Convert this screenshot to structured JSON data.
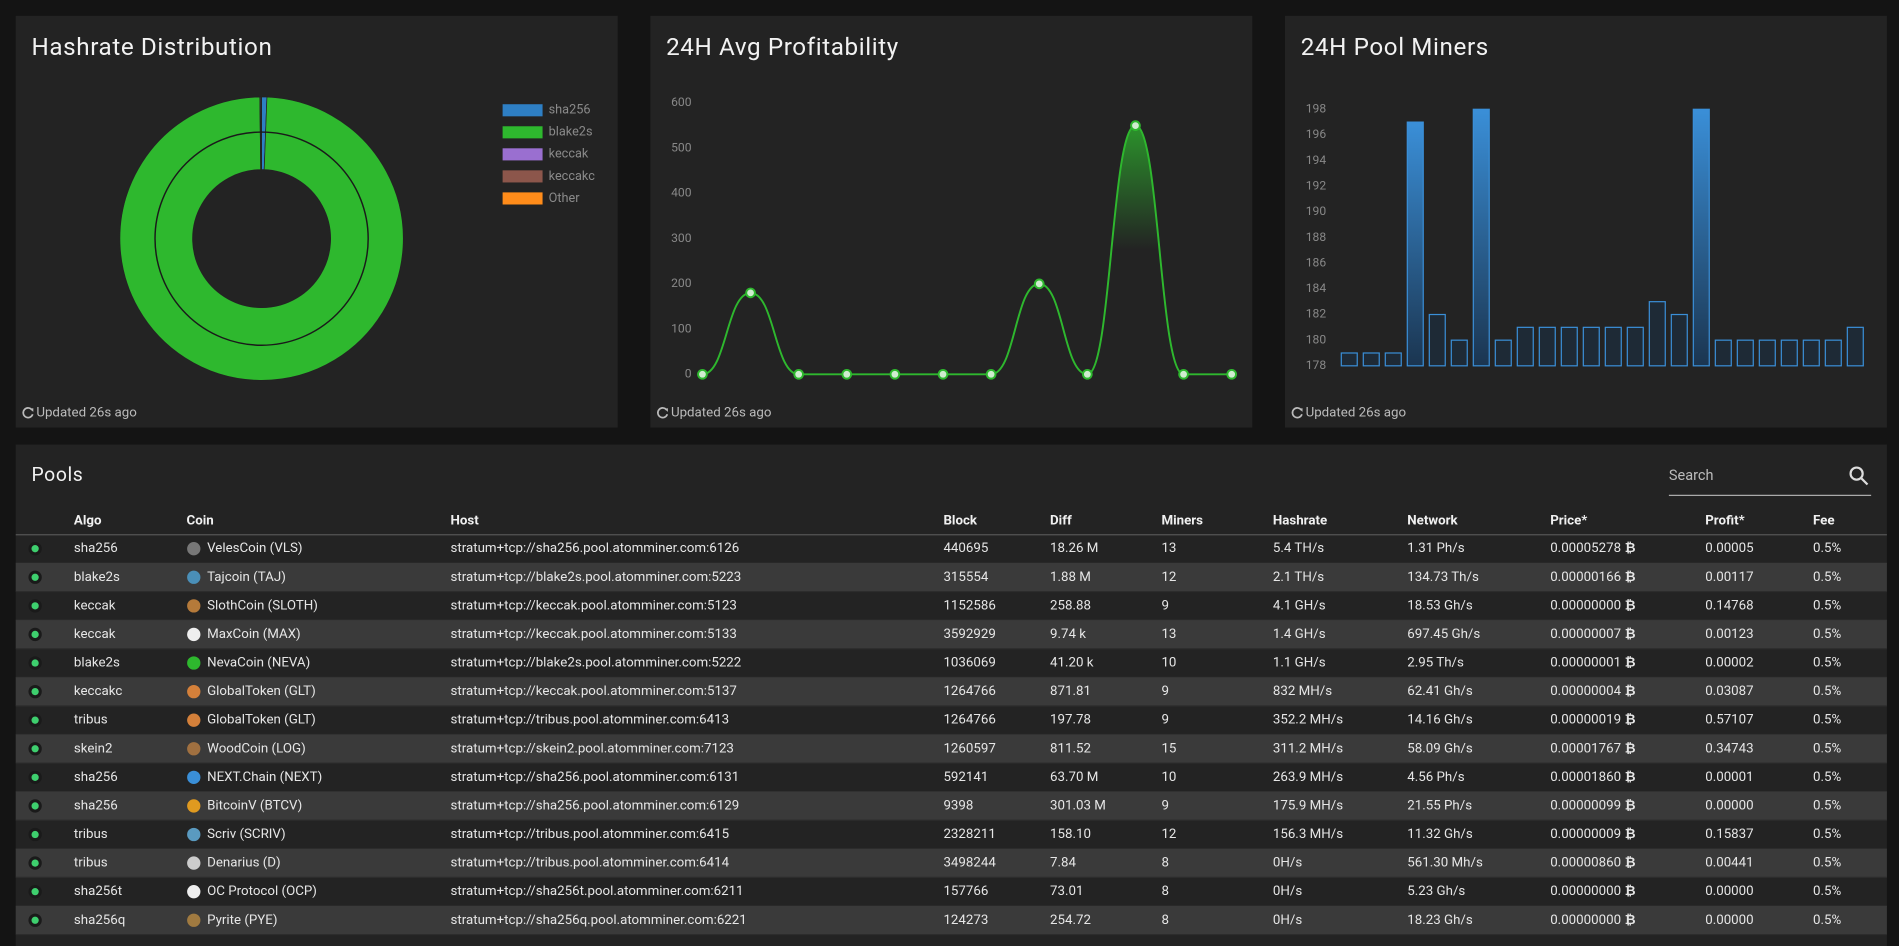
{
  "chart_data": [
    {
      "type": "donut",
      "title": "Hashrate Distribution",
      "updated": "Updated 26s ago",
      "categories": [
        "sha256",
        "blake2s",
        "keccak",
        "keccakc",
        "Other"
      ],
      "values": [
        0.6,
        99.2,
        0.1,
        0.05,
        0.05
      ],
      "colors": [
        "#2e7fc4",
        "#2eb82e",
        "#9a6fd0",
        "#8c564b",
        "#ff8c1a"
      ]
    },
    {
      "type": "line",
      "title": "24H Avg Profitability",
      "updated": "Updated 26s ago",
      "values": [
        0,
        180,
        0,
        0,
        0,
        0,
        0,
        200,
        0,
        550,
        0,
        0
      ],
      "color": "#2eb82e",
      "ylim": [
        0,
        600
      ],
      "yticks": [
        0,
        100,
        200,
        300,
        400,
        500,
        600
      ]
    },
    {
      "type": "bar",
      "title": "24H Pool Miners",
      "updated": "Updated 26s ago",
      "values": [
        179,
        179,
        179,
        197,
        182,
        180,
        198,
        180,
        181,
        181,
        181,
        181,
        181,
        181,
        183,
        182,
        198,
        180,
        180,
        180,
        180,
        180,
        180,
        181
      ],
      "color": "#3a8fd8",
      "ylim": [
        178,
        200
      ],
      "yticks": [
        178,
        180,
        182,
        184,
        186,
        188,
        190,
        192,
        194,
        196,
        198
      ]
    }
  ],
  "pools": {
    "title": "Pools",
    "search_placeholder": "Search",
    "currency_symbol": "₿",
    "columns": [
      "Algo",
      "Coin",
      "Host",
      "Block",
      "Diff",
      "Miners",
      "Hashrate",
      "Network",
      "Price*",
      "Profit*",
      "Fee"
    ],
    "rows": [
      [
        "sha256",
        "VelesCoin (VLS)",
        "stratum+tcp://sha256.pool.atomminer.com:6126",
        440695,
        "18.26 M",
        13,
        "5.4 TH/s",
        "1.31 Ph/s",
        "0.00005278",
        "0.00005",
        "0.5%"
      ],
      [
        "blake2s",
        "Tajcoin (TAJ)",
        "stratum+tcp://blake2s.pool.atomminer.com:5223",
        315554,
        "1.88 M",
        12,
        "2.1 TH/s",
        "134.73 Th/s",
        "0.00000166",
        "0.00117",
        "0.5%"
      ],
      [
        "keccak",
        "SlothCoin (SLOTH)",
        "stratum+tcp://keccak.pool.atomminer.com:5123",
        1152586,
        "258.88",
        9,
        "4.1 GH/s",
        "18.53 Gh/s",
        "0.00000000",
        "0.14768",
        "0.5%"
      ],
      [
        "keccak",
        "MaxCoin (MAX)",
        "stratum+tcp://keccak.pool.atomminer.com:5133",
        3592929,
        "9.74 k",
        13,
        "1.4 GH/s",
        "697.45 Gh/s",
        "0.00000007",
        "0.00123",
        "0.5%"
      ],
      [
        "blake2s",
        "NevaCoin (NEVA)",
        "stratum+tcp://blake2s.pool.atomminer.com:5222",
        1036069,
        "41.20 k",
        10,
        "1.1 GH/s",
        "2.95 Th/s",
        "0.00000001",
        "0.00002",
        "0.5%"
      ],
      [
        "keccakc",
        "GlobalToken (GLT)",
        "stratum+tcp://keccak.pool.atomminer.com:5137",
        1264766,
        "871.81",
        9,
        "832 MH/s",
        "62.41 Gh/s",
        "0.00000004",
        "0.03087",
        "0.5%"
      ],
      [
        "tribus",
        "GlobalToken (GLT)",
        "stratum+tcp://tribus.pool.atomminer.com:6413",
        1264766,
        "197.78",
        9,
        "352.2 MH/s",
        "14.16 Gh/s",
        "0.00000019",
        "0.57107",
        "0.5%"
      ],
      [
        "skein2",
        "WoodCoin (LOG)",
        "stratum+tcp://skein2.pool.atomminer.com:7123",
        1260597,
        "811.52",
        15,
        "311.2 MH/s",
        "58.09 Gh/s",
        "0.00001767",
        "0.34743",
        "0.5%"
      ],
      [
        "sha256",
        "NEXT.Chain (NEXT)",
        "stratum+tcp://sha256.pool.atomminer.com:6131",
        592141,
        "63.70 M",
        10,
        "263.9 MH/s",
        "4.56 Ph/s",
        "0.00001860",
        "0.00001",
        "0.5%"
      ],
      [
        "sha256",
        "BitcoinV (BTCV)",
        "stratum+tcp://sha256.pool.atomminer.com:6129",
        9398,
        "301.03 M",
        9,
        "175.9 MH/s",
        "21.55 Ph/s",
        "0.00000099",
        "0.00000",
        "0.5%"
      ],
      [
        "tribus",
        "Scriv (SCRIV)",
        "stratum+tcp://tribus.pool.atomminer.com:6415",
        2328211,
        "158.10",
        12,
        "156.3 MH/s",
        "11.32 Gh/s",
        "0.00000009",
        "0.15837",
        "0.5%"
      ],
      [
        "tribus",
        "Denarius (D)",
        "stratum+tcp://tribus.pool.atomminer.com:6414",
        3498244,
        "7.84",
        8,
        "0H/s",
        "561.30 Mh/s",
        "0.00000860",
        "0.00441",
        "0.5%"
      ],
      [
        "sha256t",
        "OC Protocol (OCP)",
        "stratum+tcp://sha256t.pool.atomminer.com:6211",
        157766,
        "73.01",
        8,
        "0H/s",
        "5.23 Gh/s",
        "0.00000000",
        "0.00000",
        "0.5%"
      ],
      [
        "sha256q",
        "Pyrite (PYE)",
        "stratum+tcp://sha256q.pool.atomminer.com:6221",
        124273,
        "254.72",
        8,
        "0H/s",
        "18.23 Gh/s",
        "0.00000000",
        "0.00000",
        "0.5%"
      ]
    ]
  }
}
